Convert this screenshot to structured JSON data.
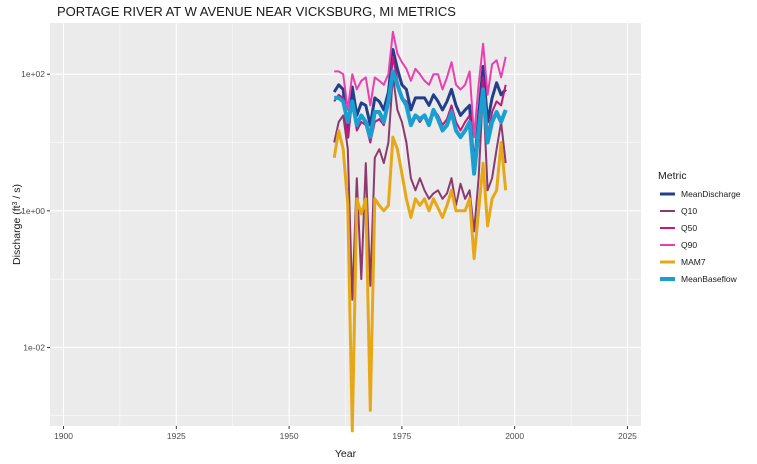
{
  "chart_data": {
    "type": "line",
    "title": "PORTAGE RIVER AT W AVENUE NEAR VICKSBURG, MI  METRICS",
    "xlabel": "Year",
    "ylabel_prefix": "Discharge (ft",
    "ylabel_sup": "3",
    "ylabel_suffix": " / s)",
    "y_scale": "log10",
    "xlim": [
      1897,
      2028
    ],
    "ylim_log10": [
      -3.15,
      2.75
    ],
    "x_ticks": [
      1900,
      1925,
      1950,
      1975,
      2000,
      2025
    ],
    "x_tick_labels": [
      "1900",
      "1925",
      "1950",
      "1975",
      "2000",
      "2025"
    ],
    "y_ticks_log10": [
      -2,
      0,
      2
    ],
    "y_tick_labels": [
      "1e-02",
      "1e+00",
      "1e+02"
    ],
    "grid": true,
    "legend_position": "right",
    "legend_title": "Metric",
    "series": [
      {
        "name": "MeanDischarge",
        "color": "#243f8a",
        "width": 3,
        "x": [
          1960,
          1961,
          1962,
          1963,
          1964,
          1965,
          1966,
          1967,
          1968,
          1969,
          1970,
          1971,
          1972,
          1973,
          1974,
          1975,
          1976,
          1977,
          1978,
          1979,
          1980,
          1981,
          1982,
          1983,
          1984,
          1985,
          1986,
          1987,
          1988,
          1989,
          1990,
          1991,
          1992,
          1993,
          1994,
          1995,
          1996,
          1997,
          1998
        ],
        "y": [
          55,
          70,
          60,
          12,
          65,
          25,
          38,
          35,
          18,
          45,
          40,
          30,
          55,
          230,
          120,
          70,
          60,
          30,
          45,
          45,
          45,
          35,
          50,
          40,
          30,
          40,
          60,
          35,
          25,
          30,
          35,
          4,
          25,
          130,
          20,
          45,
          75,
          50,
          60
        ]
      },
      {
        "name": "Q10",
        "color": "#8b3a6e",
        "width": 2,
        "x": [
          1960,
          1961,
          1962,
          1963,
          1964,
          1965,
          1966,
          1967,
          1968,
          1969,
          1970,
          1971,
          1972,
          1973,
          1974,
          1975,
          1976,
          1977,
          1978,
          1979,
          1980,
          1981,
          1982,
          1983,
          1984,
          1985,
          1986,
          1987,
          1988,
          1989,
          1990,
          1991,
          1992,
          1993,
          1994,
          1995,
          1996,
          1997,
          1998
        ],
        "y": [
          10,
          20,
          25,
          8,
          0.05,
          3,
          0.1,
          5,
          0.08,
          6,
          8,
          5,
          10,
          95,
          30,
          20,
          10,
          3,
          2,
          3,
          2,
          1.5,
          1.8,
          2,
          1.5,
          1.8,
          3,
          1.2,
          2.5,
          1.5,
          2,
          0.5,
          3,
          60,
          2,
          3,
          8,
          20,
          5
        ]
      },
      {
        "name": "Q50",
        "color": "#c2187a",
        "width": 2,
        "x": [
          1960,
          1961,
          1962,
          1963,
          1964,
          1965,
          1966,
          1967,
          1968,
          1969,
          1970,
          1971,
          1972,
          1973,
          1974,
          1975,
          1976,
          1977,
          1978,
          1979,
          1980,
          1981,
          1982,
          1983,
          1984,
          1985,
          1986,
          1987,
          1988,
          1989,
          1990,
          1991,
          1992,
          1993,
          1994,
          1995,
          1996,
          1997,
          1998
        ],
        "y": [
          40,
          50,
          45,
          12,
          40,
          15,
          20,
          18,
          10,
          20,
          22,
          18,
          35,
          180,
          80,
          45,
          40,
          20,
          25,
          20,
          25,
          20,
          30,
          25,
          18,
          22,
          35,
          20,
          15,
          20,
          25,
          5,
          18,
          90,
          12,
          28,
          40,
          35,
          70
        ]
      },
      {
        "name": "Q90",
        "color": "#ea3fb0",
        "width": 2,
        "x": [
          1960,
          1961,
          1962,
          1963,
          1964,
          1965,
          1966,
          1967,
          1968,
          1969,
          1970,
          1971,
          1972,
          1973,
          1974,
          1975,
          1976,
          1977,
          1978,
          1979,
          1980,
          1981,
          1982,
          1983,
          1984,
          1985,
          1986,
          1987,
          1988,
          1989,
          1990,
          1991,
          1992,
          1993,
          1994,
          1995,
          1996,
          1997,
          1998
        ],
        "y": [
          110,
          110,
          100,
          30,
          100,
          60,
          80,
          90,
          35,
          90,
          80,
          70,
          100,
          420,
          200,
          150,
          120,
          80,
          120,
          100,
          80,
          70,
          100,
          100,
          60,
          90,
          150,
          70,
          60,
          70,
          110,
          12,
          70,
          280,
          50,
          140,
          160,
          90,
          180
        ]
      },
      {
        "name": "MAM7",
        "color": "#e6a817",
        "width": 3,
        "x": [
          1960,
          1961,
          1962,
          1963,
          1964,
          1965,
          1966,
          1967,
          1968,
          1969,
          1970,
          1971,
          1972,
          1973,
          1974,
          1975,
          1976,
          1977,
          1978,
          1979,
          1980,
          1981,
          1982,
          1983,
          1984,
          1985,
          1986,
          1987,
          1988,
          1989,
          1990,
          1991,
          1992,
          1993,
          1994,
          1995,
          1996,
          1997,
          1998
        ],
        "y": [
          6,
          15,
          8,
          1.2,
          0.0006,
          1.5,
          0.9,
          1.5,
          0.0012,
          1.5,
          1.2,
          1,
          1.2,
          12,
          8,
          3.5,
          1.5,
          0.8,
          1.5,
          1.2,
          1.5,
          1,
          1.5,
          1.1,
          0.8,
          1.2,
          2,
          1,
          1,
          1,
          1.5,
          0.2,
          1,
          5,
          0.6,
          1.5,
          2,
          10,
          2
        ]
      },
      {
        "name": "MeanBaseflow",
        "color": "#1aa0d0",
        "width": 4,
        "x": [
          1960,
          1961,
          1962,
          1963,
          1964,
          1965,
          1966,
          1967,
          1968,
          1969,
          1970,
          1971,
          1972,
          1973,
          1974,
          1975,
          1976,
          1977,
          1978,
          1979,
          1980,
          1981,
          1982,
          1983,
          1984,
          1985,
          1986,
          1987,
          1988,
          1989,
          1990,
          1991,
          1992,
          1993,
          1994,
          1995,
          1996,
          1997,
          1998
        ],
        "y": [
          45,
          45,
          40,
          20,
          40,
          18,
          25,
          20,
          12,
          28,
          28,
          20,
          40,
          110,
          70,
          45,
          35,
          18,
          25,
          22,
          25,
          18,
          30,
          22,
          15,
          18,
          28,
          15,
          12,
          15,
          20,
          3.5,
          15,
          60,
          10,
          20,
          28,
          20,
          30
        ]
      }
    ]
  }
}
